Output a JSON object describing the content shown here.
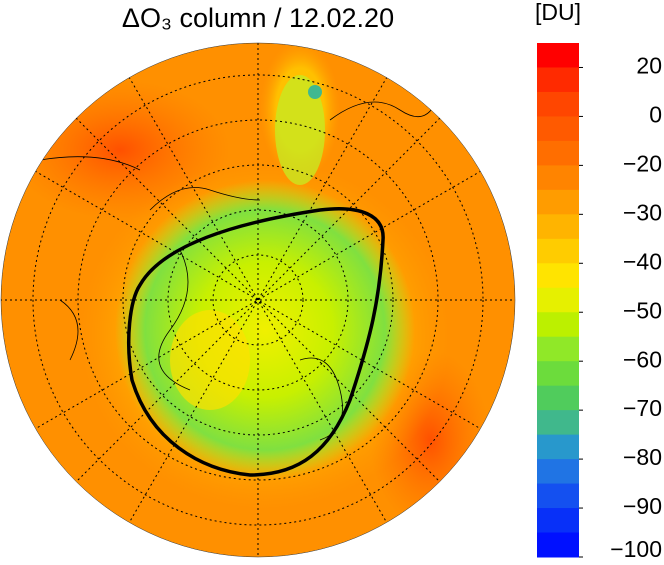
{
  "chart_data": {
    "type": "map",
    "title": "ΔO₃ column / 12.02.20",
    "colorbar_unit": "[DU]",
    "levels": [
      30,
      20,
      10,
      0,
      -10,
      -20,
      -25,
      -30,
      -35,
      -40,
      -45,
      -50,
      -55,
      -60,
      -65,
      -70,
      -75,
      -80,
      -85,
      -90,
      -95,
      -100
    ],
    "colors": [
      "#ff0000",
      "#ff2a00",
      "#ff4600",
      "#ff5a00",
      "#ff6e00",
      "#ff8400",
      "#ff9c00",
      "#ffb400",
      "#ffcc00",
      "#ffe400",
      "#e6f000",
      "#bcf000",
      "#90e828",
      "#6cdc3c",
      "#50cc5c",
      "#40b88c",
      "#2898cc",
      "#2074e4",
      "#1450f0",
      "#0830f8",
      "#0010ff"
    ],
    "colorbar_ticks": [
      20,
      0,
      {
        "value": -20,
        "label": "−20"
      },
      {
        "value": -30,
        "label": "−30"
      },
      {
        "value": -40,
        "label": "−40"
      },
      {
        "value": -50,
        "label": "−50"
      },
      {
        "value": -60,
        "label": "−60"
      },
      {
        "value": -70,
        "label": "−70"
      },
      {
        "value": -80,
        "label": "−80"
      },
      {
        "value": -90,
        "label": "−90"
      },
      {
        "value": -100,
        "label": "−100"
      }
    ]
  }
}
